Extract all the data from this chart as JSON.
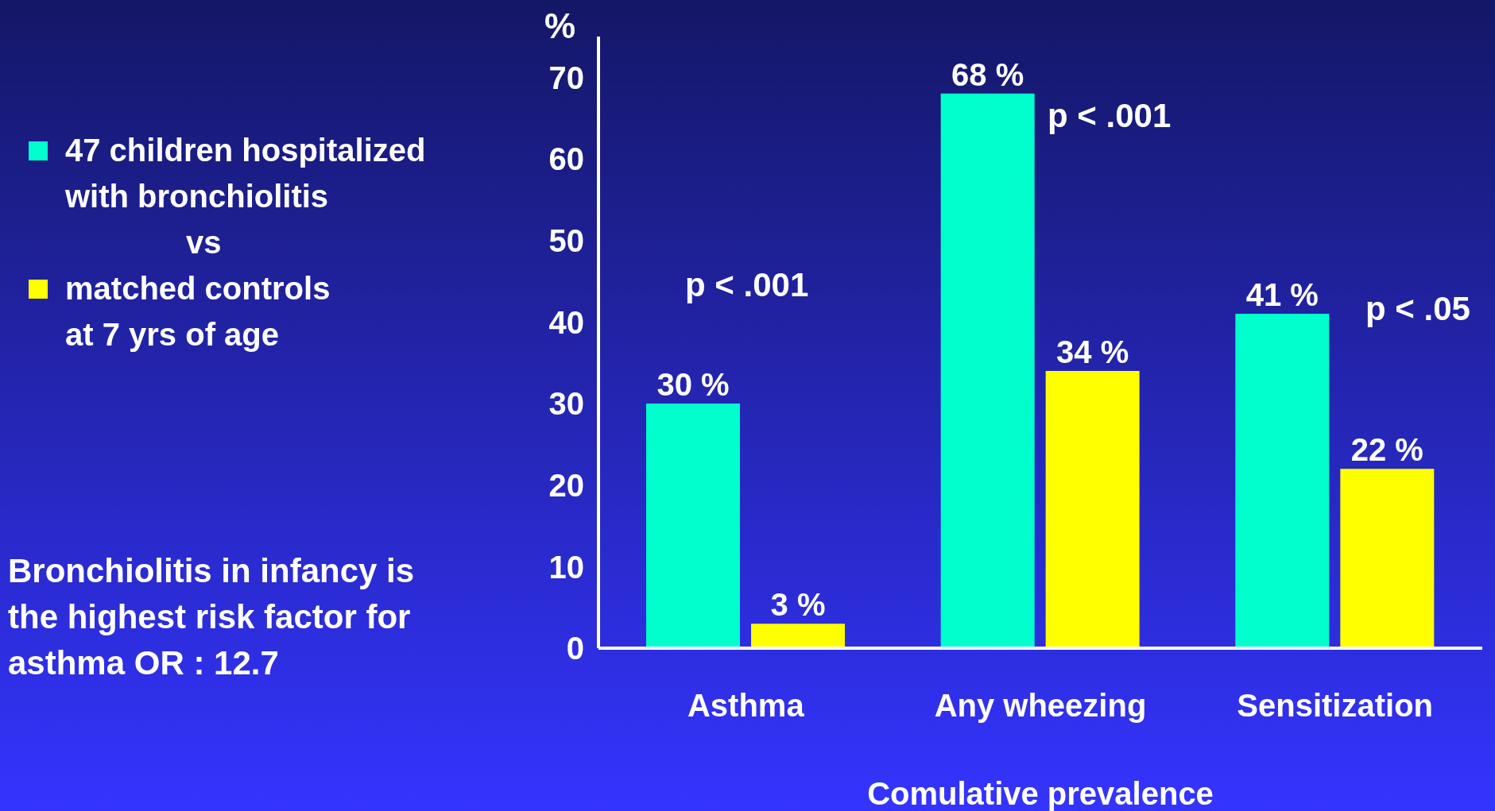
{
  "chart_data": {
    "type": "bar",
    "ylabel": "%",
    "xlabel": "Comulative prevalence",
    "categories": [
      "Asthma",
      "Any wheezing",
      "Sensitization"
    ],
    "series": [
      {
        "name": "47 children hospitalized with bronchiolitis",
        "color": "#00ffcc",
        "values": [
          30,
          68,
          41
        ],
        "value_labels": [
          "30 %",
          "68 %",
          "41 %"
        ]
      },
      {
        "name": "matched controls at 7 yrs of age",
        "color": "#ffff00",
        "values": [
          3,
          34,
          22
        ],
        "value_labels": [
          "3 %",
          "34 %",
          "22 %"
        ]
      }
    ],
    "ylim": [
      0,
      75
    ],
    "yticks": [
      0,
      10,
      20,
      30,
      40,
      50,
      60,
      70
    ],
    "grid": false,
    "legend": "left",
    "annotations": [
      "p < .001",
      "p < .001",
      "p < .05",
      "vs",
      "Bronchiolitis in infancy is the highest risk factor for asthma OR : 12.7"
    ]
  }
}
